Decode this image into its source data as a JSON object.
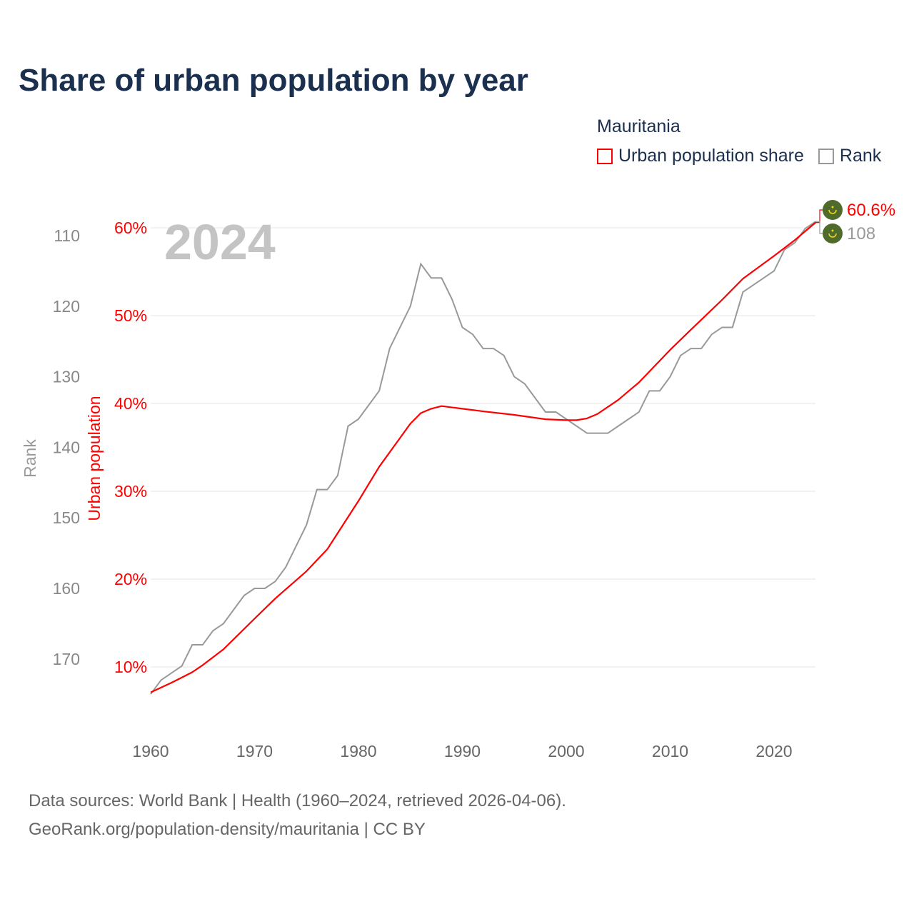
{
  "title": "Share of urban population by year",
  "legend": {
    "title": "Mauritania",
    "items": [
      {
        "label": "Urban population share",
        "color": "#ff0000"
      },
      {
        "label": "Rank",
        "color": "#999999"
      }
    ]
  },
  "footer": {
    "line1": "Data sources: World Bank | Health (1960–2024, retrieved 2026-04-06).",
    "line2": "GeoRank.org/population-density/mauritania | CC BY"
  },
  "chart_data": {
    "type": "line",
    "title": "Share of urban population by year",
    "year_label": "2024",
    "xlabel": "",
    "ylabel_left": "Urban population",
    "ylabel_rank": "Rank",
    "xlim": [
      1960,
      2024
    ],
    "xticks": [
      "1960",
      "1970",
      "1980",
      "1990",
      "2000",
      "2010",
      "2020"
    ],
    "ylim_share": [
      10,
      60
    ],
    "yticks_share": [
      "10%",
      "20%",
      "30%",
      "40%",
      "50%",
      "60%"
    ],
    "yticks_rank": [
      "110",
      "120",
      "130",
      "140",
      "150",
      "160",
      "170"
    ],
    "rank_range": [
      110,
      170
    ],
    "end_labels": {
      "share": "60.6%",
      "rank": "108"
    },
    "flag_icon": "mauritania-flag",
    "share_series": {
      "name": "Urban population share",
      "color": "#ff0000",
      "points": [
        [
          1960,
          7.1
        ],
        [
          1962,
          8.2
        ],
        [
          1964,
          9.4
        ],
        [
          1965,
          10.2
        ],
        [
          1967,
          12.0
        ],
        [
          1970,
          15.5
        ],
        [
          1972,
          17.8
        ],
        [
          1975,
          20.9
        ],
        [
          1977,
          23.4
        ],
        [
          1980,
          28.9
        ],
        [
          1982,
          32.8
        ],
        [
          1985,
          37.7
        ],
        [
          1986,
          38.9
        ],
        [
          1987,
          39.4
        ],
        [
          1988,
          39.7
        ],
        [
          1990,
          39.4
        ],
        [
          1992,
          39.1
        ],
        [
          1995,
          38.7
        ],
        [
          1998,
          38.2
        ],
        [
          2000,
          38.1
        ],
        [
          2001,
          38.1
        ],
        [
          2002,
          38.3
        ],
        [
          2003,
          38.8
        ],
        [
          2005,
          40.4
        ],
        [
          2007,
          42.4
        ],
        [
          2010,
          46.1
        ],
        [
          2012,
          48.4
        ],
        [
          2015,
          51.8
        ],
        [
          2017,
          54.2
        ],
        [
          2020,
          56.8
        ],
        [
          2022,
          58.6
        ],
        [
          2024,
          60.6
        ]
      ]
    },
    "rank_series": {
      "name": "Rank",
      "color": "#999999",
      "x": [
        1960,
        1961,
        1962,
        1963,
        1964,
        1965,
        1966,
        1967,
        1968,
        1969,
        1970,
        1971,
        1972,
        1973,
        1974,
        1975,
        1976,
        1977,
        1978,
        1979,
        1980,
        1981,
        1982,
        1983,
        1984,
        1985,
        1986,
        1987,
        1988,
        1989,
        1990,
        1991,
        1992,
        1993,
        1994,
        1995,
        1996,
        1997,
        1998,
        1999,
        2000,
        2001,
        2002,
        2003,
        2004,
        2005,
        2006,
        2007,
        2008,
        2009,
        2010,
        2011,
        2012,
        2013,
        2014,
        2015,
        2016,
        2017,
        2018,
        2019,
        2020,
        2021,
        2022,
        2023,
        2024
      ],
      "values": [
        175,
        173,
        172,
        171,
        168,
        168,
        166,
        165,
        163,
        161,
        160,
        160,
        159,
        157,
        154,
        151,
        146,
        146,
        144,
        137,
        136,
        134,
        132,
        126,
        123,
        120,
        114,
        116,
        116,
        119,
        123,
        124,
        126,
        126,
        127,
        130,
        131,
        133,
        135,
        135,
        136,
        137,
        138,
        138,
        138,
        137,
        136,
        135,
        132,
        132,
        130,
        127,
        126,
        126,
        124,
        123,
        123,
        118,
        117,
        116,
        115,
        112,
        111,
        109,
        108
      ]
    }
  }
}
